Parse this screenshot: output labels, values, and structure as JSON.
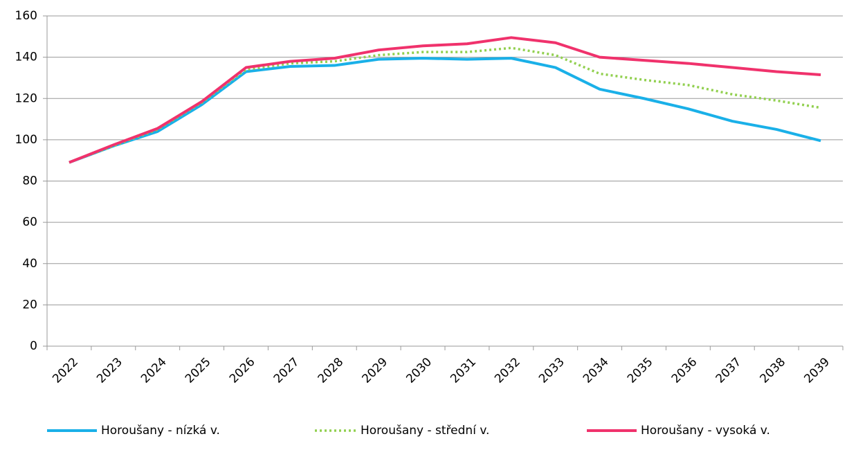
{
  "chart_data": {
    "type": "line",
    "categories": [
      "2022",
      "2023",
      "2024",
      "2025",
      "2026",
      "2027",
      "2028",
      "2029",
      "2030",
      "2031",
      "2032",
      "2033",
      "2034",
      "2035",
      "2036",
      "2037",
      "2038",
      "2039"
    ],
    "series": [
      {
        "name": "Horoušany - nízká v.",
        "color": "#1ab0e8",
        "dash": "solid",
        "values": [
          89,
          97,
          104,
          117,
          133,
          135.5,
          136,
          139,
          139.5,
          139,
          139.5,
          135,
          124.5,
          120,
          115,
          109,
          105,
          99.5
        ]
      },
      {
        "name": "Horoušany - střední v.",
        "color": "#92d050",
        "dash": "dotted",
        "values": [
          89,
          97,
          105,
          118,
          134,
          137,
          138,
          141,
          142.5,
          142.5,
          144.5,
          141,
          132,
          129,
          126.5,
          122,
          119,
          115.5
        ]
      },
      {
        "name": "Horoušany - vysoká v.",
        "color": "#f0326c",
        "dash": "solid",
        "values": [
          89,
          97.5,
          105.5,
          118.5,
          135,
          138,
          139.5,
          143.5,
          145.5,
          146.5,
          149.5,
          147,
          140,
          138.5,
          137,
          135,
          133,
          131.5
        ]
      }
    ],
    "ylim": [
      0,
      160
    ],
    "yticks": [
      0,
      20,
      40,
      60,
      80,
      100,
      120,
      140,
      160
    ],
    "grid": true,
    "legend": "bottom"
  }
}
